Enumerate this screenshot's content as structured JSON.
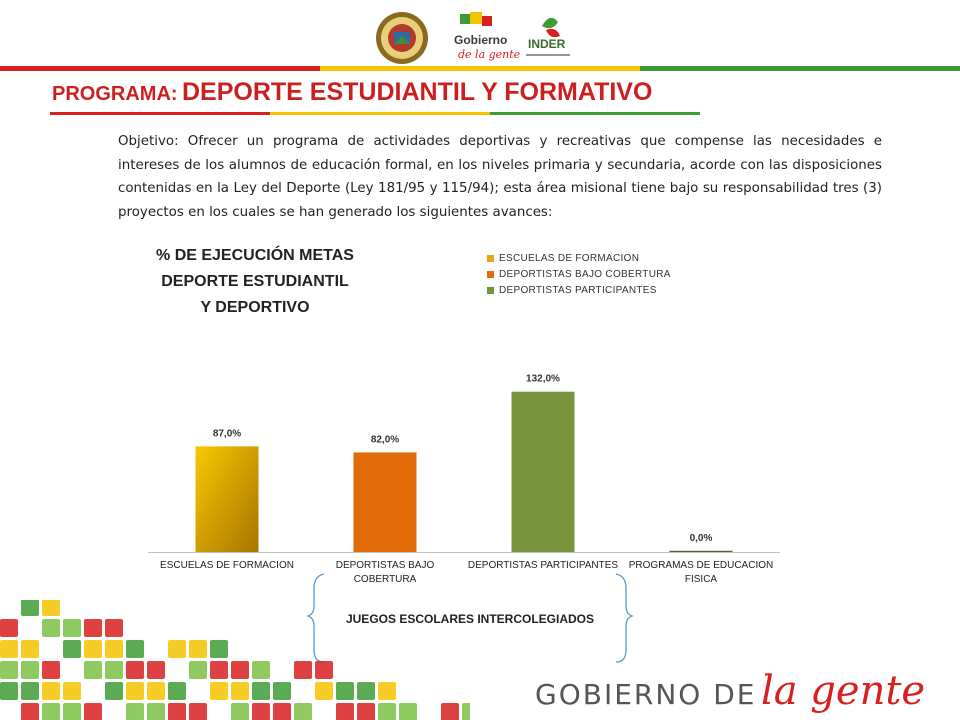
{
  "header": {
    "program_label": "PROGRAMA:",
    "program_name": "DEPORTE ESTUDIANTIL Y FORMATIVO",
    "logos": [
      {
        "name": "seal-icon"
      },
      {
        "name": "gobierno-de-la-gente-logo",
        "text_top": "Gobierno",
        "text_bottom": "de la gente"
      },
      {
        "name": "inder-logo",
        "text": "INDER"
      }
    ]
  },
  "objective_text": "Objetivo: Ofrecer un programa de actividades deportivas y recreativas que compense las necesidades e intereses de los alumnos de educación formal, en los niveles primaria y secundaria, acorde con las disposiciones contenidas en la Ley del Deporte (Ley 181/95 y 115/94); esta área misional tiene bajo su responsabilidad tres (3) proyectos en los cuales se han generado los siguientes avances:",
  "chart_data": {
    "type": "bar",
    "title_lines": [
      "% DE EJECUCIÓN METAS",
      "DEPORTE ESTUDIANTIL",
      "Y DEPORTIVO"
    ],
    "categories": [
      "ESCUELAS DE FORMACION",
      "DEPORTISTAS BAJO COBERTURA",
      "DEPORTISTAS PARTICIPANTES",
      "PROGRAMAS DE EDUCACION FISICA"
    ],
    "category_label_lines": [
      [
        "ESCUELAS DE FORMACION"
      ],
      [
        "DEPORTISTAS BAJO",
        "COBERTURA"
      ],
      [
        "DEPORTISTAS PARTICIPANTES"
      ],
      [
        "PROGRAMAS DE EDUCACION",
        "FISICA"
      ]
    ],
    "values": [
      87.0,
      82.0,
      132.0,
      0.0
    ],
    "data_labels": [
      "87,0%",
      "82,0%",
      "132,0%",
      "0,0%"
    ],
    "colors": [
      "#f0b400",
      "#e36c0a",
      "#77933c",
      "#4f6228"
    ],
    "ylim": [
      0,
      140
    ],
    "grid": false,
    "legend_position": "top-right",
    "legend": [
      {
        "label": "ESCUELAS DE FORMACION",
        "color": "#e8a317"
      },
      {
        "label": "DEPORTISTAS BAJO COBERTURA",
        "color": "#e36c0a"
      },
      {
        "label": "DEPORTISTAS PARTICIPANTES",
        "color": "#77933c"
      }
    ]
  },
  "group_label": "JUEGOS ESCOLARES INTERCOLEGIADOS",
  "footer": {
    "brand_prefix": "GOBIERNO DE",
    "brand_name": "la gente"
  },
  "colors": {
    "title_red": "#cc1f1f",
    "stripe_red": "#d82020",
    "stripe_yellow": "#f5c400",
    "stripe_green": "#3e9b36"
  }
}
